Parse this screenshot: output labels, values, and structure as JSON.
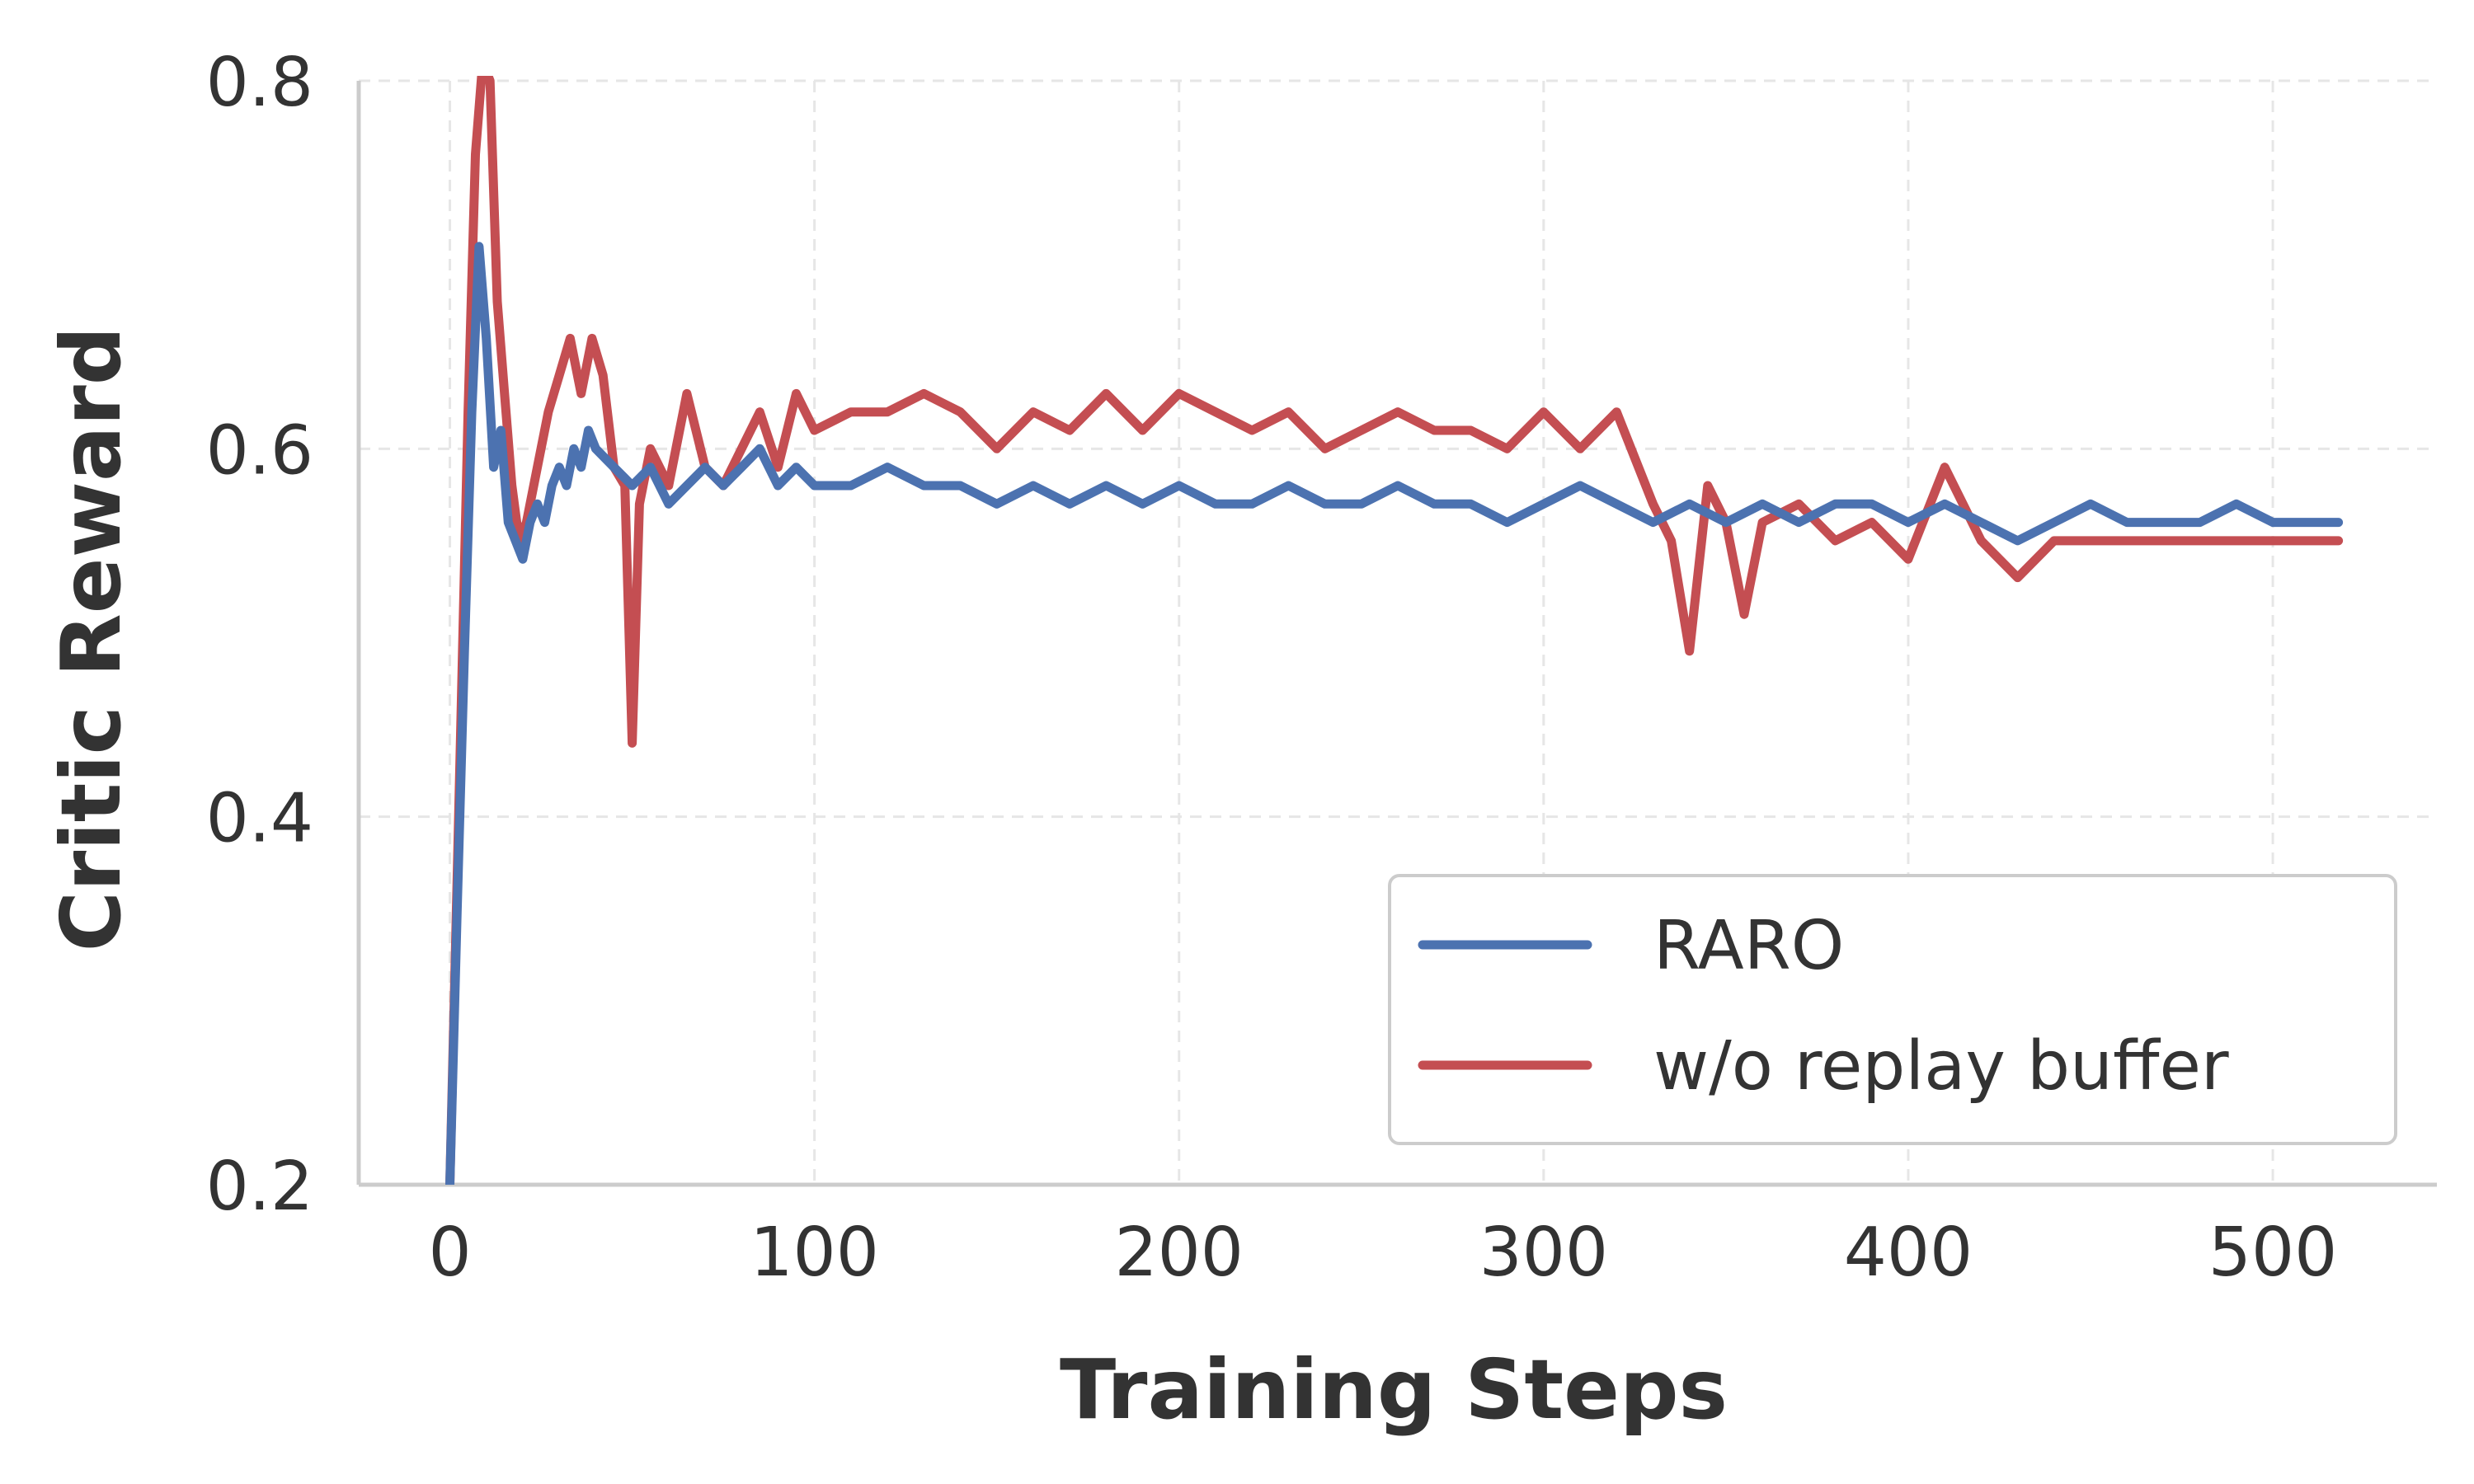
{
  "chart_data": {
    "type": "line",
    "xlabel": "Training Steps",
    "ylabel": "Critic Reward",
    "xlim": [
      -25,
      545
    ],
    "ylim": [
      0.2,
      0.8
    ],
    "x_ticks": [
      0,
      100,
      200,
      300,
      400,
      500
    ],
    "x_tick_labels": [
      "0",
      "100",
      "200",
      "300",
      "400",
      "500"
    ],
    "y_ticks": [
      0.2,
      0.4,
      0.6,
      0.8
    ],
    "y_tick_labels": [
      "0.2",
      "0.4",
      "0.6",
      "0.8"
    ],
    "grid": true,
    "legend_position": "lower-right",
    "series": [
      {
        "name": "RARO",
        "color": "#4c72b0",
        "x": [
          0,
          2,
          4,
          6,
          8,
          10,
          12,
          14,
          16,
          18,
          20,
          22,
          24,
          26,
          28,
          30,
          32,
          34,
          36,
          38,
          40,
          45,
          50,
          55,
          60,
          65,
          70,
          75,
          80,
          85,
          90,
          95,
          100,
          110,
          120,
          130,
          140,
          150,
          160,
          170,
          180,
          190,
          200,
          210,
          220,
          230,
          240,
          250,
          260,
          270,
          280,
          290,
          300,
          310,
          320,
          330,
          340,
          350,
          360,
          370,
          380,
          390,
          400,
          410,
          420,
          430,
          440,
          450,
          460,
          470,
          480,
          490,
          500,
          510,
          518
        ],
        "y": [
          0.2,
          0.35,
          0.49,
          0.62,
          0.71,
          0.66,
          0.59,
          0.61,
          0.56,
          0.55,
          0.54,
          0.56,
          0.57,
          0.56,
          0.58,
          0.59,
          0.58,
          0.6,
          0.59,
          0.61,
          0.6,
          0.59,
          0.58,
          0.59,
          0.57,
          0.58,
          0.59,
          0.58,
          0.59,
          0.6,
          0.58,
          0.59,
          0.58,
          0.58,
          0.59,
          0.58,
          0.58,
          0.57,
          0.58,
          0.57,
          0.58,
          0.57,
          0.58,
          0.57,
          0.57,
          0.58,
          0.57,
          0.57,
          0.58,
          0.57,
          0.57,
          0.56,
          0.57,
          0.58,
          0.57,
          0.56,
          0.57,
          0.56,
          0.57,
          0.56,
          0.57,
          0.57,
          0.56,
          0.57,
          0.56,
          0.55,
          0.56,
          0.57,
          0.56,
          0.56,
          0.56,
          0.57,
          0.56,
          0.56,
          0.56
        ]
      },
      {
        "name": "w/o replay buffer",
        "color": "#c44e52",
        "x": [
          0,
          3,
          5,
          7,
          9,
          11,
          13,
          15,
          17,
          19,
          21,
          24,
          27,
          30,
          33,
          36,
          39,
          42,
          45,
          48,
          50,
          52,
          55,
          60,
          65,
          70,
          75,
          80,
          85,
          90,
          95,
          100,
          110,
          120,
          130,
          140,
          150,
          160,
          170,
          180,
          190,
          200,
          210,
          220,
          230,
          240,
          250,
          260,
          270,
          280,
          290,
          300,
          310,
          320,
          330,
          335,
          340,
          345,
          350,
          355,
          360,
          370,
          380,
          390,
          400,
          410,
          420,
          430,
          440,
          450,
          460,
          470,
          480,
          490,
          500,
          510,
          518
        ],
        "y": [
          0.2,
          0.45,
          0.62,
          0.76,
          0.81,
          0.8,
          0.68,
          0.63,
          0.58,
          0.55,
          0.56,
          0.59,
          0.62,
          0.64,
          0.66,
          0.63,
          0.66,
          0.64,
          0.59,
          0.58,
          0.44,
          0.57,
          0.6,
          0.58,
          0.63,
          0.59,
          0.58,
          0.6,
          0.62,
          0.59,
          0.63,
          0.61,
          0.62,
          0.62,
          0.63,
          0.62,
          0.6,
          0.62,
          0.61,
          0.63,
          0.61,
          0.63,
          0.62,
          0.61,
          0.62,
          0.6,
          0.61,
          0.62,
          0.61,
          0.61,
          0.6,
          0.62,
          0.6,
          0.62,
          0.57,
          0.55,
          0.49,
          0.58,
          0.56,
          0.51,
          0.56,
          0.57,
          0.55,
          0.56,
          0.54,
          0.59,
          0.55,
          0.53,
          0.55,
          0.55,
          0.55,
          0.55,
          0.55,
          0.55,
          0.55,
          0.55,
          0.55
        ]
      }
    ]
  }
}
